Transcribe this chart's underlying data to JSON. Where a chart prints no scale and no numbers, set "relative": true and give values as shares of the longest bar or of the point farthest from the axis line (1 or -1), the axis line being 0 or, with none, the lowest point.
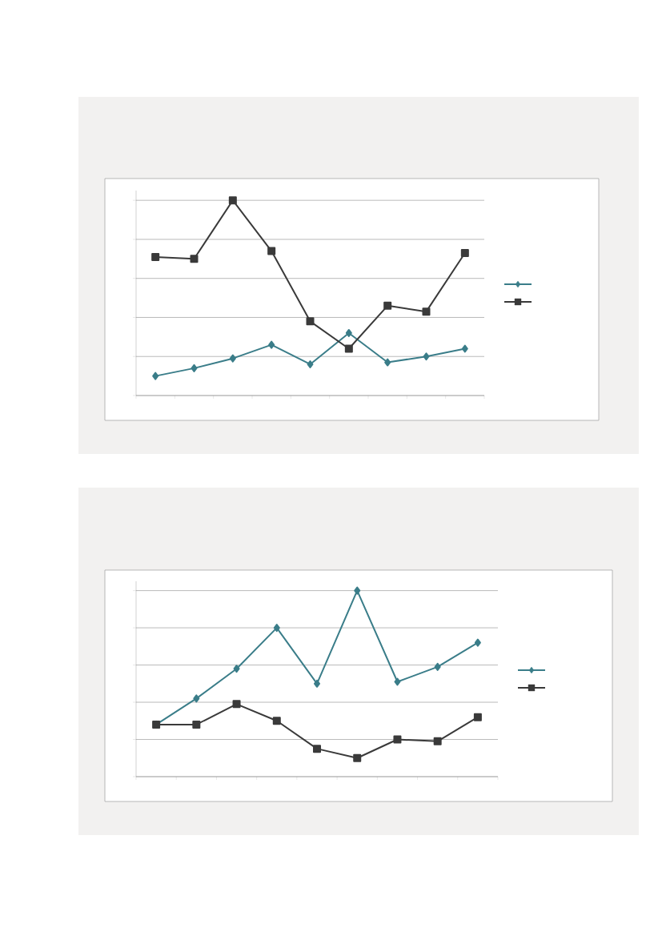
{
  "chart_data": [
    {
      "type": "line",
      "relative": true,
      "grid": "y",
      "categories": [
        null,
        null,
        null,
        null,
        null,
        null,
        null,
        null,
        null
      ],
      "series": [
        {
          "color": "#3a7d89",
          "marker": "diamond",
          "values": [
            0.1,
            0.14,
            0.19,
            0.26,
            0.16,
            0.32,
            0.17,
            0.2,
            0.24
          ]
        },
        {
          "color": "#3a3a3a",
          "marker": "square",
          "values": [
            0.71,
            0.7,
            1.0,
            0.74,
            0.38,
            0.24,
            0.46,
            0.43,
            0.73
          ]
        }
      ]
    },
    {
      "type": "line",
      "relative": true,
      "grid": "y",
      "categories": [
        null,
        null,
        null,
        null,
        null,
        null,
        null,
        null,
        null
      ],
      "series": [
        {
          "color": "#3a7d89",
          "marker": "diamond",
          "values": [
            0.28,
            0.42,
            0.58,
            0.8,
            0.5,
            1.0,
            0.51,
            0.59,
            0.72
          ]
        },
        {
          "color": "#3a3a3a",
          "marker": "square",
          "values": [
            0.28,
            0.28,
            0.39,
            0.3,
            0.15,
            0.1,
            0.2,
            0.19,
            0.32
          ]
        }
      ]
    }
  ]
}
